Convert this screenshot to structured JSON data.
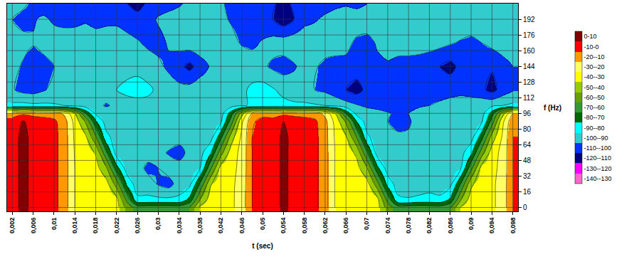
{
  "chart_data": {
    "type": "contour",
    "x_label": "t (sec)",
    "y_label": "f (Hz)",
    "x": [
      0.002,
      0.004,
      0.006,
      0.008,
      0.01,
      0.012,
      0.014,
      0.016,
      0.018,
      0.02,
      0.022,
      0.024,
      0.026,
      0.028,
      0.03,
      0.032,
      0.034,
      0.036,
      0.038,
      0.04,
      0.042,
      0.044,
      0.046,
      0.048,
      0.05,
      0.052,
      0.054,
      0.056,
      0.058,
      0.06,
      0.062,
      0.064,
      0.066,
      0.068,
      0.07,
      0.072,
      0.074,
      0.076,
      0.078,
      0.08,
      0.082,
      0.084,
      0.086,
      0.088,
      0.09,
      0.092,
      0.094,
      0.096,
      0.098
    ],
    "y": [
      0,
      8,
      24,
      40,
      56,
      72,
      88,
      96,
      104,
      120,
      144,
      168,
      192,
      208
    ],
    "z": [
      [
        -6,
        4,
        -4,
        -5,
        -7,
        -15,
        -30,
        -32,
        -33,
        -34,
        -36,
        -54,
        -65,
        -65,
        -65,
        -65,
        -65,
        -60,
        -38,
        -34,
        -33,
        -32,
        -25,
        -10,
        -5,
        -6,
        3,
        -4,
        -5,
        -7,
        -16,
        -31,
        -32,
        -33,
        -34,
        -36,
        -55,
        -66,
        -65,
        -64,
        -65,
        -66,
        -61,
        -39,
        -34,
        -33,
        -32,
        -26,
        -10
      ],
      [
        -6,
        4,
        -4,
        -5,
        -7,
        -15,
        -30,
        -32,
        -33,
        -34,
        -37,
        -63,
        -88,
        -88,
        -88,
        -88,
        -88,
        -77,
        -50,
        -35,
        -33,
        -32,
        -25,
        -10,
        -5,
        -6,
        3,
        -4,
        -5,
        -7,
        -16,
        -31,
        -32,
        -33,
        -34,
        -37,
        -64,
        -88,
        -89,
        -88,
        -87,
        -88,
        -78,
        -51,
        -35,
        -33,
        -32,
        -26,
        -10
      ],
      [
        -6,
        4,
        -4,
        -5,
        -7,
        -15,
        -30,
        -32,
        -34,
        -36,
        -55,
        -83,
        -95,
        -95,
        -101,
        -104,
        -95,
        -93,
        -69,
        -41,
        -34,
        -32,
        -26,
        -10,
        -5,
        -6,
        3,
        -4,
        -5,
        -7,
        -16,
        -31,
        -32,
        -34,
        -36,
        -56,
        -84,
        -95,
        -96,
        -95,
        -94,
        -95,
        -93,
        -70,
        -42,
        -34,
        -32,
        -26,
        -10
      ],
      [
        -6,
        4,
        -4,
        -5,
        -7,
        -15,
        -30,
        -33,
        -36,
        -48,
        -76,
        -95,
        -95,
        -103,
        -100,
        -95,
        -95,
        -95,
        -90,
        -62,
        -36,
        -33,
        -27,
        -10,
        -5,
        -6,
        3,
        -4,
        -5,
        -7,
        -16,
        -31,
        -33,
        -36,
        -49,
        -77,
        -95,
        -96,
        -95,
        -94,
        -95,
        -96,
        -95,
        -91,
        -63,
        -36,
        -33,
        -27,
        -10
      ],
      [
        -6,
        4,
        -4,
        -5,
        -7,
        -15,
        -31,
        -35,
        -41,
        -68,
        -95,
        -95,
        -95,
        -95,
        -97,
        -101,
        -105,
        -96,
        -94,
        -81,
        -54,
        -35,
        -27,
        -10,
        -5,
        -6,
        3,
        -4,
        -5,
        -7,
        -16,
        -31,
        -35,
        -42,
        -69,
        -95,
        -95,
        -94,
        -95,
        -96,
        -95,
        -94,
        -95,
        -94,
        -82,
        -55,
        -35,
        -27,
        -10
      ],
      [
        -6,
        4,
        -4,
        -5,
        -7,
        -15,
        -32,
        -38,
        -59,
        -87,
        -95,
        -95,
        -98,
        -95,
        -95,
        -94,
        -95,
        -95,
        -95,
        -95,
        -73,
        -45,
        -28,
        -10,
        -5,
        -6,
        3,
        -4,
        -5,
        -7,
        -16,
        -32,
        -39,
        -60,
        -88,
        -95,
        -96,
        -98,
        -99,
        -96,
        -95,
        -95,
        -94,
        -95,
        -95,
        -74,
        -46,
        -29,
        -10
      ],
      [
        -7,
        1,
        -5,
        -6,
        -8,
        -16,
        -34,
        -51,
        -79,
        -95,
        -95,
        -95,
        -95,
        -95,
        -95,
        -95,
        -95,
        -95,
        -95,
        -95,
        -92,
        -65,
        -32,
        -12,
        -6,
        -7,
        0,
        -5,
        -6,
        -8,
        -17,
        -34,
        -52,
        -80,
        -95,
        -95,
        -100,
        -104,
        -101,
        -97,
        -95,
        -95,
        -95,
        -95,
        -95,
        -92,
        -66,
        -33,
        -12
      ],
      [
        -14,
        -12,
        -13,
        -14,
        -15,
        -22,
        -40,
        -70,
        -92,
        -95,
        -95,
        -95,
        -95,
        -95,
        -95,
        -95,
        -95,
        -95,
        -95,
        -95,
        -95,
        -74,
        -45,
        -18,
        -14,
        -14,
        -13,
        -13,
        -14,
        -15,
        -23,
        -41,
        -71,
        -93,
        -95,
        -96,
        -99,
        -102,
        -100,
        -97,
        -95,
        -95,
        -95,
        -95,
        -95,
        -95,
        -75,
        -46,
        -18
      ],
      [
        -88,
        -87,
        -88,
        -88,
        -89,
        -90,
        -93,
        -95,
        -97,
        -101,
        -98,
        -95,
        -94,
        -93,
        -95,
        -96,
        -98,
        -97,
        -95,
        -94,
        -95,
        -94,
        -91,
        -89,
        -88,
        -88,
        -87,
        -88,
        -88,
        -89,
        -90,
        -93,
        -96,
        -99,
        -102,
        -104,
        -106,
        -105,
        -103,
        -101,
        -100,
        -98,
        -96,
        -95,
        -94,
        -93,
        -92,
        -90,
        -88
      ],
      [
        -99,
        -103,
        -104,
        -101,
        -97,
        -95,
        -93,
        -94,
        -96,
        -94,
        -90,
        -87,
        -86,
        -88,
        -92,
        -95,
        -97,
        -96,
        -94,
        -95,
        -98,
        -96,
        -92,
        -88,
        -86,
        -89,
        -93,
        -96,
        -98,
        -100,
        -102,
        -106,
        -110,
        -114,
        -107,
        -103,
        -104,
        -106,
        -102,
        -101,
        -103,
        -105,
        -104,
        -103,
        -105,
        -108,
        -113,
        -106,
        -101
      ],
      [
        -97,
        -101,
        -106,
        -104,
        -100,
        -97,
        -95,
        -94,
        -96,
        -98,
        -96,
        -94,
        -93,
        -95,
        -98,
        -102,
        -107,
        -113,
        -105,
        -99,
        -96,
        -94,
        -93,
        -95,
        -98,
        -102,
        -104,
        -101,
        -97,
        -99,
        -102,
        -104,
        -103,
        -105,
        -104,
        -102,
        -101,
        -103,
        -104,
        -106,
        -108,
        -110,
        -113,
        -107,
        -104,
        -106,
        -109,
        -104,
        -100
      ],
      [
        -95,
        -97,
        -99,
        -96,
        -94,
        -93,
        -94,
        -95,
        -94,
        -93,
        -95,
        -97,
        -99,
        -102,
        -103,
        -99,
        -96,
        -94,
        -93,
        -94,
        -95,
        -97,
        -101,
        -102,
        -99,
        -96,
        -95,
        -94,
        -93,
        -94,
        -96,
        -95,
        -97,
        -102,
        -103,
        -99,
        -97,
        -96,
        -95,
        -94,
        -95,
        -97,
        -99,
        -101,
        -102,
        -100,
        -97,
        -95,
        -94
      ],
      [
        -100,
        -103,
        -101,
        -98,
        -102,
        -104,
        -103,
        -101,
        -104,
        -103,
        -102,
        -104,
        -106,
        -103,
        -99,
        -97,
        -96,
        -95,
        -94,
        -96,
        -98,
        -101,
        -103,
        -104,
        -106,
        -110,
        -116,
        -110,
        -103,
        -101,
        -98,
        -96,
        -95,
        -94,
        -95,
        -93,
        -94,
        -95,
        -96,
        -95,
        -94,
        -95,
        -94,
        -93,
        -95,
        -94,
        -93,
        -94,
        -95
      ],
      [
        -95,
        -98,
        -102,
        -106,
        -107,
        -105,
        -104,
        -106,
        -108,
        -106,
        -107,
        -110,
        -114,
        -108,
        -104,
        -103,
        -101,
        -98,
        -96,
        -97,
        -99,
        -102,
        -104,
        -106,
        -107,
        -109,
        -113,
        -108,
        -105,
        -106,
        -104,
        -102,
        -101,
        -103,
        -100,
        -97,
        -95,
        -94,
        -95,
        -96,
        -95,
        -94,
        -95,
        -96,
        -95,
        -94,
        -96,
        -95,
        -94
      ]
    ],
    "xlim": [
      0.001,
      0.099
    ],
    "ylim": [
      -4,
      208
    ],
    "xticks": [
      {
        "value": 0.002,
        "label": "0,002"
      },
      {
        "value": 0.006,
        "label": "0,006"
      },
      {
        "value": 0.01,
        "label": "0,01"
      },
      {
        "value": 0.014,
        "label": "0,014"
      },
      {
        "value": 0.018,
        "label": "0,018"
      },
      {
        "value": 0.022,
        "label": "0,022"
      },
      {
        "value": 0.026,
        "label": "0,026"
      },
      {
        "value": 0.03,
        "label": "0,03"
      },
      {
        "value": 0.034,
        "label": "0,034"
      },
      {
        "value": 0.038,
        "label": "0,038"
      },
      {
        "value": 0.042,
        "label": "0,042"
      },
      {
        "value": 0.046,
        "label": "0,046"
      },
      {
        "value": 0.05,
        "label": "0,05"
      },
      {
        "value": 0.054,
        "label": "0,054"
      },
      {
        "value": 0.058,
        "label": "0,058"
      },
      {
        "value": 0.062,
        "label": "0,062"
      },
      {
        "value": 0.066,
        "label": "0,066"
      },
      {
        "value": 0.07,
        "label": "0,07"
      },
      {
        "value": 0.074,
        "label": "0,074"
      },
      {
        "value": 0.078,
        "label": "0,078"
      },
      {
        "value": 0.082,
        "label": "0,082"
      },
      {
        "value": 0.086,
        "label": "0,086"
      },
      {
        "value": 0.09,
        "label": "0,09"
      },
      {
        "value": 0.094,
        "label": "0,094"
      },
      {
        "value": 0.098,
        "label": "0,098"
      }
    ],
    "yticks": [
      0,
      16,
      32,
      48,
      64,
      80,
      96,
      112,
      128,
      144,
      160,
      176,
      192
    ],
    "grid": true,
    "colors": [
      "#800000",
      "#FF0000",
      "#FF9900",
      "#FFFF66",
      "#FFFF00",
      "#99CC00",
      "#66A000",
      "#339933",
      "#006600",
      "#00FFFF",
      "#33CCCC",
      "#0033FF",
      "#000080",
      "#FF00FF",
      "#FF66CC"
    ],
    "colorbar": {
      "range": [
        -140,
        10
      ],
      "ticks": [
        {
          "value": 5,
          "label": "0-10"
        },
        {
          "value": -5,
          "label": "-10-0"
        },
        {
          "value": -15,
          "label": "-20--10"
        },
        {
          "value": -25,
          "label": "-30--20"
        },
        {
          "value": -35,
          "label": "-40--30"
        },
        {
          "value": -45,
          "label": "-50--40"
        },
        {
          "value": -55,
          "label": "-60--50"
        },
        {
          "value": -65,
          "label": "-70--60"
        },
        {
          "value": -75,
          "label": "-80--70"
        },
        {
          "value": -85,
          "label": "-90--80"
        },
        {
          "value": -95,
          "label": "-100--90"
        },
        {
          "value": -105,
          "label": "-110--100"
        },
        {
          "value": -115,
          "label": "-120--110"
        },
        {
          "value": -125,
          "label": "-130--120"
        },
        {
          "value": -135,
          "label": "-140--130"
        }
      ]
    }
  }
}
